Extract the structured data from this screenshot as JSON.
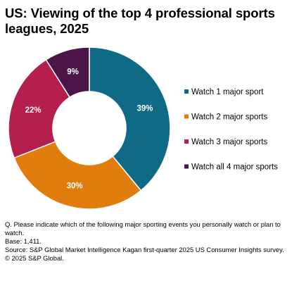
{
  "title": "US: Viewing of the top 4 professional sports leagues, 2025",
  "chart_data": {
    "type": "pie",
    "variant": "donut",
    "categories": [
      "Watch 1 major sport",
      "Watch 2 major sports",
      "Watch 3 major sports",
      "Watch all 4 major sports"
    ],
    "values": [
      39,
      30,
      22,
      9
    ],
    "labels": [
      "39%",
      "30%",
      "22%",
      "9%"
    ],
    "colors": [
      "#0f6a85",
      "#e07d0c",
      "#b41f4d",
      "#4b1547"
    ],
    "label_colors": [
      "#ffffff",
      "#ffffff",
      "#ffffff",
      "#ffffff"
    ],
    "legend_position": "right"
  },
  "footnotes": [
    "Q. Please indicate which of the following major sporting events you personally watch or plan to watch.",
    "Base: 1,411.",
    "Source: S&P Global Market Intelligence Kagan first-quarter 2025 US Consumer Insights survey.",
    "© 2025 S&P Global."
  ]
}
